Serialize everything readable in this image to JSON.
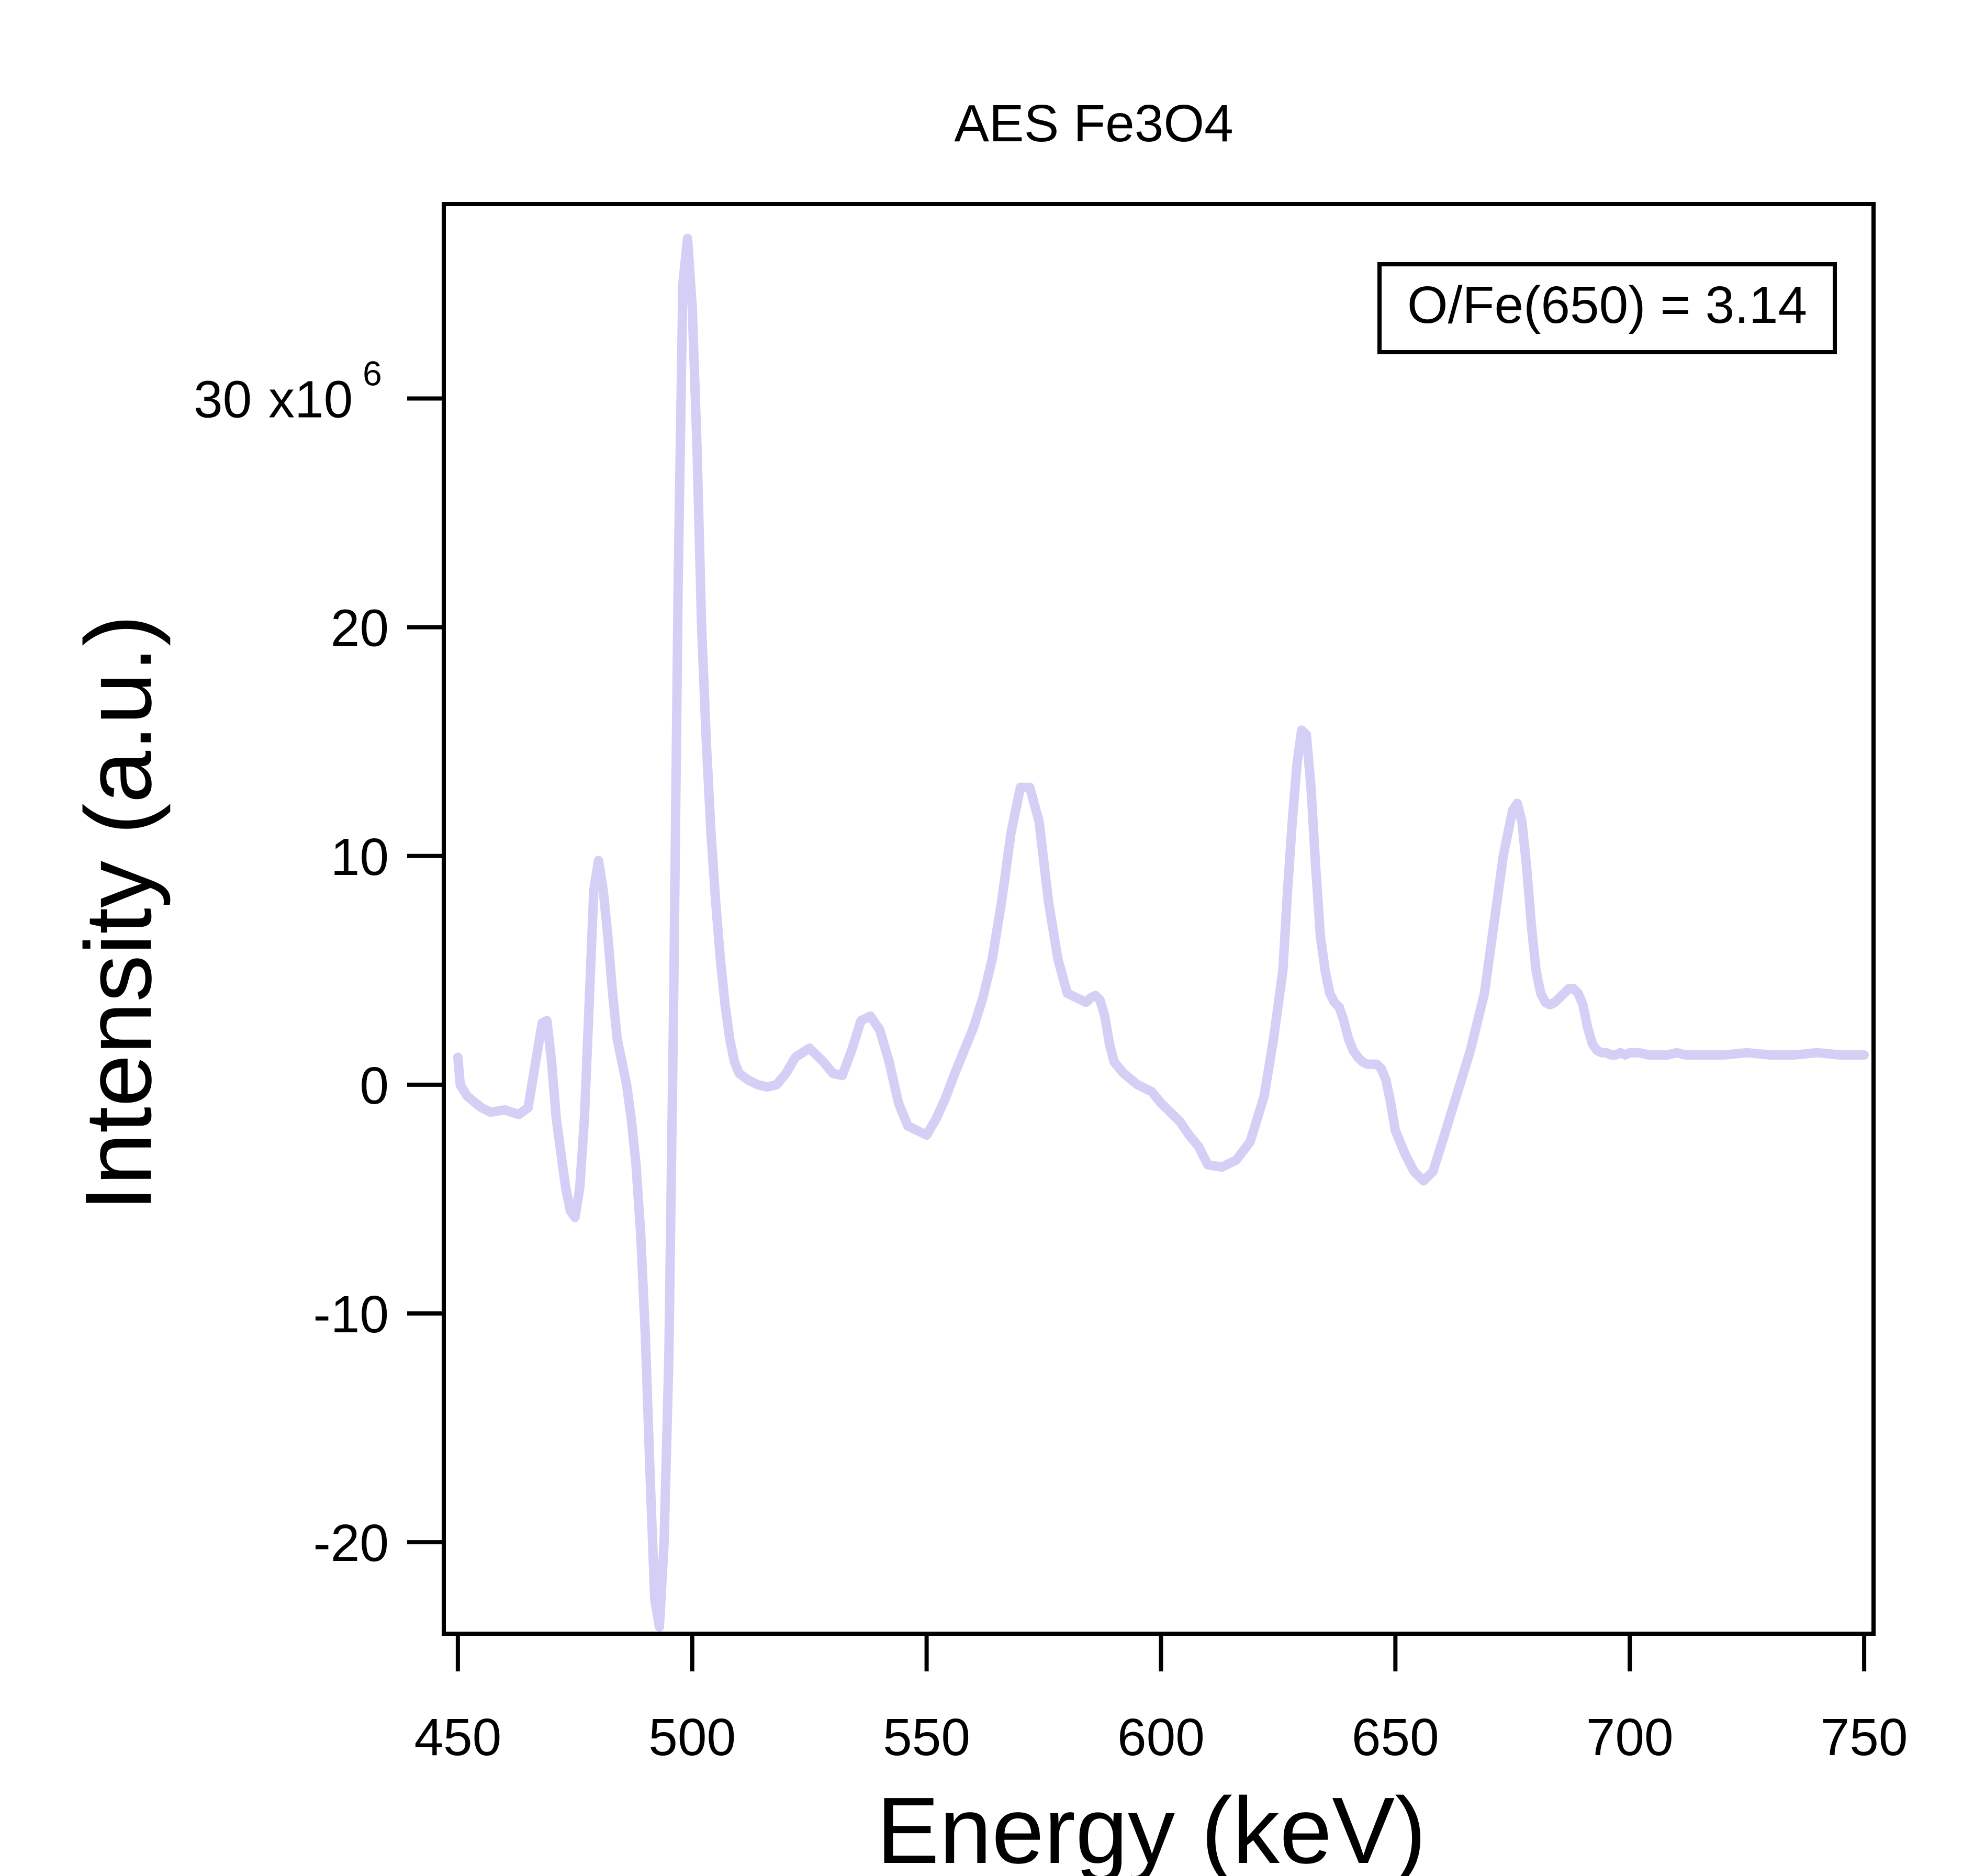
{
  "chart_data": {
    "type": "line",
    "title": "AES Fe3O4",
    "xlabel": "Energy (keV)",
    "ylabel": "Intensity (a.u.)",
    "xlim": [
      447,
      752
    ],
    "ylim": [
      -24.0,
      38.5
    ],
    "x_ticks": [
      450,
      500,
      550,
      600,
      650,
      700,
      750
    ],
    "x_tick_labels": [
      "450",
      "500",
      "550",
      "600",
      "650",
      "700",
      "750"
    ],
    "y_ticks": [
      -20,
      -10,
      0,
      10,
      20,
      30
    ],
    "y_tick_labels": [
      "-20",
      "-10",
      "0",
      "10",
      "20",
      "30"
    ],
    "y_multiplier_label": "x10",
    "y_multiplier_exponent": "6",
    "grid": false,
    "legend": "none",
    "annotation": "O/Fe(650) = 3.14",
    "annotation_position": "top-right",
    "line_color": "#d3cff5",
    "series": [
      {
        "x": [
          450,
          450.5,
          452,
          455,
          457,
          460,
          463,
          465,
          467,
          468,
          469,
          470,
          471,
          472,
          473,
          474,
          475,
          476,
          477,
          478,
          479,
          480,
          481,
          482,
          483,
          484,
          485,
          486,
          487,
          488,
          489,
          490,
          491,
          492,
          493,
          494,
          495,
          496,
          497,
          498,
          499,
          500,
          501,
          502,
          503,
          504,
          505,
          506,
          507,
          508,
          509,
          510,
          512,
          514,
          516,
          518,
          520,
          522,
          525,
          528,
          530,
          532,
          534,
          536,
          538,
          540,
          542,
          544,
          546,
          548,
          550,
          552,
          554,
          556,
          558,
          560,
          562,
          564,
          566,
          568,
          570,
          572,
          574,
          576,
          578,
          580,
          582,
          584,
          585,
          586,
          587,
          588,
          589,
          590,
          592,
          595,
          598,
          600,
          602,
          604,
          606,
          608,
          610,
          613,
          616,
          619,
          622,
          624,
          626,
          627,
          628,
          629,
          630,
          631,
          632,
          633,
          634,
          635,
          636,
          637,
          638,
          639,
          640,
          641,
          642,
          643,
          644,
          645,
          646,
          647,
          648,
          649,
          650,
          652,
          654,
          656,
          658,
          660,
          663,
          666,
          669,
          671,
          673,
          675,
          676,
          677,
          678,
          679,
          680,
          681,
          682,
          683,
          684,
          685,
          686,
          687,
          688,
          689,
          690,
          691,
          692,
          693,
          694,
          695,
          696,
          697,
          698,
          699,
          700,
          701,
          702,
          704,
          706,
          708,
          710,
          712,
          715,
          720,
          725,
          730,
          735,
          740,
          745,
          750
        ],
        "y": [
          1.2,
          0,
          -0.5,
          -1.0,
          -1.2,
          -1.1,
          -1.3,
          -1.0,
          1.5,
          2.7,
          2.8,
          1.0,
          -1.5,
          -3.0,
          -4.5,
          -5.5,
          -5.8,
          -4.5,
          -1.5,
          3.5,
          8.5,
          9.8,
          8.5,
          6.5,
          4.0,
          2.0,
          1.0,
          0.0,
          -1.5,
          -3.5,
          -6.5,
          -11.0,
          -17.0,
          -22.5,
          -23.7,
          -20.0,
          -12.0,
          3.0,
          22.0,
          35.0,
          37.0,
          34.0,
          28.0,
          20.0,
          15.0,
          11.0,
          8.0,
          5.5,
          3.5,
          2.0,
          1.0,
          0.5,
          0.2,
          0.0,
          -0.1,
          0.0,
          0.5,
          1.2,
          1.6,
          1.0,
          0.5,
          0.4,
          1.5,
          2.8,
          3.0,
          2.4,
          1.0,
          -0.8,
          -1.8,
          -2.0,
          -2.2,
          -1.5,
          -0.6,
          0.5,
          1.5,
          2.5,
          3.8,
          5.5,
          8.0,
          11.0,
          13.0,
          13.0,
          11.5,
          8.0,
          5.5,
          4.0,
          3.8,
          3.6,
          3.8,
          3.9,
          3.7,
          3.0,
          1.8,
          1.0,
          0.5,
          0.0,
          -0.3,
          -0.8,
          -1.2,
          -1.6,
          -2.2,
          -2.7,
          -3.5,
          -3.6,
          -3.3,
          -2.5,
          -0.5,
          2.0,
          5.0,
          8.5,
          11.5,
          14.0,
          15.5,
          15.3,
          13.0,
          9.5,
          6.5,
          5.0,
          4.0,
          3.6,
          3.4,
          2.8,
          2.0,
          1.5,
          1.2,
          1.0,
          0.9,
          0.9,
          0.9,
          0.7,
          0.2,
          -0.8,
          -2.0,
          -3.0,
          -3.8,
          -4.2,
          -3.8,
          -2.5,
          -0.5,
          1.5,
          4.0,
          7.0,
          10.0,
          12.0,
          12.3,
          11.5,
          9.5,
          7.0,
          5.0,
          4.0,
          3.6,
          3.5,
          3.6,
          3.8,
          4.0,
          4.2,
          4.2,
          4.0,
          3.5,
          2.5,
          1.8,
          1.5,
          1.4,
          1.4,
          1.3,
          1.3,
          1.4,
          1.3,
          1.4,
          1.4,
          1.4,
          1.3,
          1.3,
          1.3,
          1.4,
          1.3,
          1.3,
          1.3,
          1.4,
          1.3,
          1.3,
          1.4,
          1.3,
          1.3
        ]
      }
    ]
  }
}
